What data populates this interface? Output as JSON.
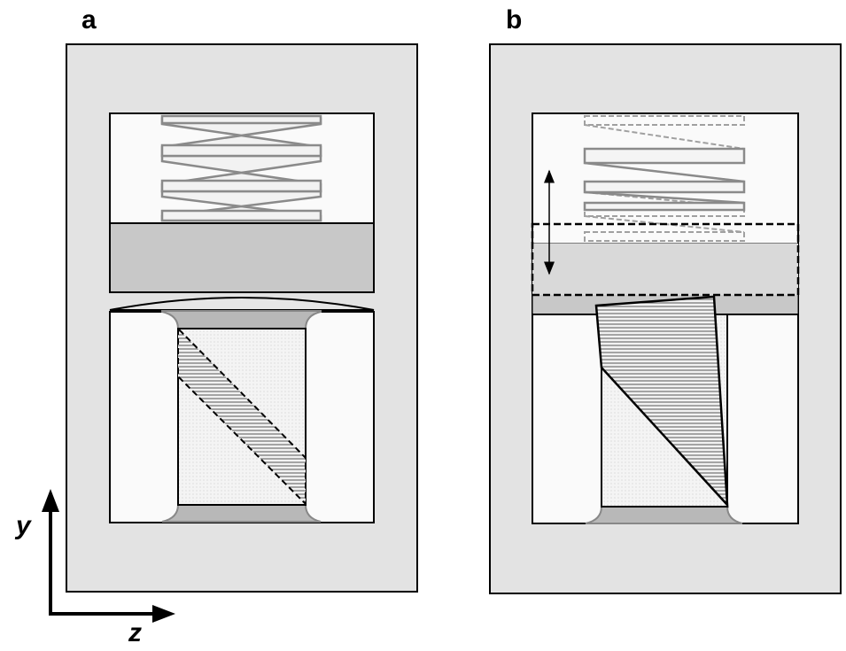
{
  "panels": {
    "a": {
      "label": "a"
    },
    "b": {
      "label": "b"
    }
  },
  "axes": {
    "vertical_label": "y",
    "horizontal_label": "z"
  },
  "colors": {
    "frame_fill": "#e3e3e3",
    "cavity_fill": "#fafafa",
    "plate_fill": "#c8c8c8",
    "spring_stroke": "#8a8a8a",
    "hatch": "#555555"
  }
}
